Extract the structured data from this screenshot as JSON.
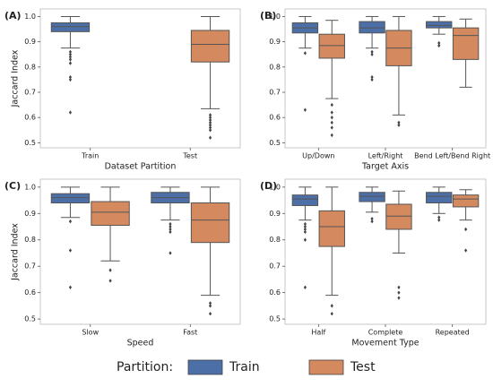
{
  "legend": {
    "title": "Partition:",
    "entries": [
      {
        "name": "Train",
        "color": "#4c6fa8"
      },
      {
        "name": "Test",
        "color": "#d48a5e"
      }
    ]
  },
  "chart_data": [
    {
      "type": "box",
      "panel_label": "(A)",
      "xlabel": "Dataset Partition",
      "ylabel": "Jaccard Index",
      "categories": [
        "Train",
        "Test"
      ],
      "ylim": [
        0.48,
        1.03
      ],
      "yticks": [
        0.5,
        0.6,
        0.7,
        0.8,
        0.9,
        {
          "value": 1,
          "label": "1.0"
        }
      ],
      "series": [
        {
          "values": [
            {
              "whislo": 0.875,
              "q1": 0.94,
              "med": 0.96,
              "q3": 0.975,
              "whishi": 1.0,
              "fliers": [
                0.86,
                0.85,
                0.84,
                0.83,
                0.815,
                0.76,
                0.75,
                0.62
              ]
            },
            null
          ]
        },
        {
          "values": [
            null,
            {
              "whislo": 0.635,
              "q1": 0.82,
              "med": 0.89,
              "q3": 0.945,
              "whishi": 1.0,
              "fliers": [
                0.61,
                0.6,
                0.59,
                0.58,
                0.57,
                0.56,
                0.55,
                0.52
              ]
            }
          ]
        }
      ]
    },
    {
      "type": "box",
      "panel_label": "(B)",
      "xlabel": "Target Axis",
      "categories": [
        "Up/Down",
        "Left/Right",
        "Bend Left/Bend Right"
      ],
      "ylim": [
        0.48,
        1.03
      ],
      "yticks": [
        0.5,
        0.6,
        0.7,
        0.8,
        0.9,
        {
          "value": 1,
          "label": "1.0"
        }
      ],
      "series": [
        {
          "values": [
            {
              "whislo": 0.875,
              "q1": 0.935,
              "med": 0.955,
              "q3": 0.975,
              "whishi": 1.0,
              "fliers": [
                0.855,
                0.63
              ]
            },
            {
              "whislo": 0.875,
              "q1": 0.935,
              "med": 0.955,
              "q3": 0.98,
              "whishi": 1.0,
              "fliers": [
                0.86,
                0.85,
                0.76,
                0.75
              ]
            },
            {
              "whislo": 0.93,
              "q1": 0.955,
              "med": 0.965,
              "q3": 0.98,
              "whishi": 1.0,
              "fliers": [
                0.895,
                0.885
              ]
            }
          ]
        },
        {
          "values": [
            {
              "whislo": 0.675,
              "q1": 0.835,
              "med": 0.885,
              "q3": 0.93,
              "whishi": 0.985,
              "fliers": [
                0.65,
                0.62,
                0.6,
                0.58,
                0.56,
                0.53
              ]
            },
            {
              "whislo": 0.61,
              "q1": 0.805,
              "med": 0.875,
              "q3": 0.945,
              "whishi": 1.0,
              "fliers": [
                0.58,
                0.57
              ]
            },
            {
              "whislo": 0.72,
              "q1": 0.83,
              "med": 0.925,
              "q3": 0.955,
              "whishi": 0.99,
              "fliers": []
            }
          ]
        }
      ]
    },
    {
      "type": "box",
      "panel_label": "(C)",
      "xlabel": "Speed",
      "ylabel": "Jaccard Index",
      "categories": [
        "Slow",
        "Fast"
      ],
      "ylim": [
        0.48,
        1.03
      ],
      "yticks": [
        0.5,
        0.6,
        0.7,
        0.8,
        0.9,
        {
          "value": 1,
          "label": "1.0"
        }
      ],
      "series": [
        {
          "values": [
            {
              "whislo": 0.885,
              "q1": 0.94,
              "med": 0.96,
              "q3": 0.975,
              "whishi": 1.0,
              "fliers": [
                0.87,
                0.76,
                0.62
              ]
            },
            {
              "whislo": 0.875,
              "q1": 0.94,
              "med": 0.96,
              "q3": 0.98,
              "whishi": 1.0,
              "fliers": [
                0.86,
                0.85,
                0.84,
                0.83,
                0.75
              ]
            }
          ]
        },
        {
          "values": [
            {
              "whislo": 0.72,
              "q1": 0.855,
              "med": 0.905,
              "q3": 0.945,
              "whishi": 1.0,
              "fliers": [
                0.685,
                0.645
              ]
            },
            {
              "whislo": 0.59,
              "q1": 0.79,
              "med": 0.875,
              "q3": 0.94,
              "whishi": 1.0,
              "fliers": [
                0.56,
                0.55,
                0.52
              ]
            }
          ]
        }
      ]
    },
    {
      "type": "box",
      "panel_label": "(D)",
      "xlabel": "Movement Type",
      "categories": [
        "Half",
        "Complete",
        "Repeated"
      ],
      "ylim": [
        0.48,
        1.03
      ],
      "yticks": [
        0.5,
        0.6,
        0.7,
        0.8,
        0.9,
        {
          "value": 1,
          "label": "1.0"
        }
      ],
      "series": [
        {
          "values": [
            {
              "whislo": 0.875,
              "q1": 0.93,
              "med": 0.955,
              "q3": 0.97,
              "whishi": 1.0,
              "fliers": [
                0.86,
                0.85,
                0.84,
                0.83,
                0.8,
                0.62
              ]
            },
            {
              "whislo": 0.905,
              "q1": 0.945,
              "med": 0.965,
              "q3": 0.98,
              "whishi": 1.0,
              "fliers": [
                0.88,
                0.87
              ]
            },
            {
              "whislo": 0.9,
              "q1": 0.94,
              "med": 0.965,
              "q3": 0.98,
              "whishi": 1.0,
              "fliers": [
                0.885,
                0.875
              ]
            }
          ]
        },
        {
          "values": [
            {
              "whislo": 0.59,
              "q1": 0.775,
              "med": 0.85,
              "q3": 0.91,
              "whishi": 1.0,
              "fliers": [
                0.55,
                0.52
              ]
            },
            {
              "whislo": 0.75,
              "q1": 0.84,
              "med": 0.89,
              "q3": 0.935,
              "whishi": 0.985,
              "fliers": [
                0.62,
                0.6,
                0.58
              ]
            },
            {
              "whislo": 0.875,
              "q1": 0.925,
              "med": 0.955,
              "q3": 0.97,
              "whishi": 0.99,
              "fliers": [
                0.84,
                0.76
              ]
            }
          ]
        }
      ]
    }
  ]
}
